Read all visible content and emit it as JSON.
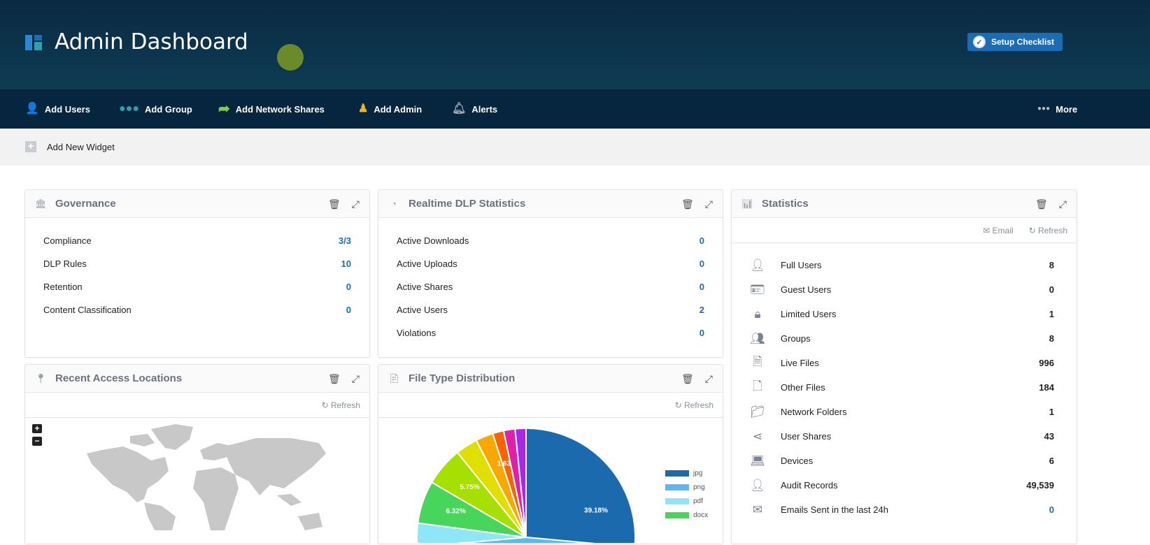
{
  "header": {
    "title": "Admin Dashboard",
    "setup_label": "Setup Checklist"
  },
  "nav": {
    "items": [
      {
        "label": "Add Users",
        "icon": "user-plus-icon",
        "color": "#2f86d4"
      },
      {
        "label": "Add Group",
        "icon": "group-icon",
        "color": "#2aa3ad"
      },
      {
        "label": "Add Network Shares",
        "icon": "share-arrow-icon",
        "color": "#7fcf3a"
      },
      {
        "label": "Add Admin",
        "icon": "admin-icon",
        "color": "#f0b323"
      },
      {
        "label": "Alerts",
        "icon": "bell-icon",
        "color": "#a0a8b8"
      }
    ],
    "more_label": "More"
  },
  "toolbar": {
    "add_widget": "Add New Widget"
  },
  "governance": {
    "title": "Governance",
    "rows": [
      {
        "label": "Compliance",
        "value": "3/3"
      },
      {
        "label": "DLP Rules",
        "value": "10"
      },
      {
        "label": "Retention",
        "value": "0"
      },
      {
        "label": "Content Classification",
        "value": "0"
      }
    ]
  },
  "dlp": {
    "title": "Realtime DLP Statistics",
    "rows": [
      {
        "label": "Active Downloads",
        "value": "0"
      },
      {
        "label": "Active Uploads",
        "value": "0"
      },
      {
        "label": "Active Shares",
        "value": "0"
      },
      {
        "label": "Active Users",
        "value": "2"
      },
      {
        "label": "Violations",
        "value": "0"
      }
    ]
  },
  "statistics": {
    "title": "Statistics",
    "email": "Email",
    "refresh": "Refresh",
    "rows": [
      {
        "label": "Full Users",
        "value": "8",
        "icon": "user-icon"
      },
      {
        "label": "Guest Users",
        "value": "0",
        "icon": "badge-icon"
      },
      {
        "label": "Limited Users",
        "value": "1",
        "icon": "user-lock-icon"
      },
      {
        "label": "Groups",
        "value": "8",
        "icon": "group-icon"
      },
      {
        "label": "Live Files",
        "value": "996",
        "icon": "file-text-icon"
      },
      {
        "label": "Other Files",
        "value": "184",
        "icon": "file-icon"
      },
      {
        "label": "Network Folders",
        "value": "1",
        "icon": "folder-icon"
      },
      {
        "label": "User Shares",
        "value": "43",
        "icon": "share-icon"
      },
      {
        "label": "Devices",
        "value": "6",
        "icon": "laptop-icon"
      },
      {
        "label": "Audit Records",
        "value": "49,539",
        "icon": "user-icon"
      },
      {
        "label": "Emails Sent in the last 24h",
        "value": "0",
        "icon": "envelope-icon",
        "highlight": true
      }
    ]
  },
  "locations": {
    "title": "Recent Access Locations",
    "refresh": "Refresh",
    "zoom_in": "+",
    "zoom_out": "−"
  },
  "filetypes": {
    "title": "File Type Distribution",
    "refresh": "Refresh"
  },
  "chart_data": {
    "type": "pie",
    "slices": [
      {
        "name": "jpg",
        "value": 39.18,
        "label": "39.18%",
        "color": "#1c6aae"
      },
      {
        "name": "png",
        "value": 22.0,
        "color": "#5bb8f5"
      },
      {
        "name": "pdf",
        "value": 15.92,
        "color": "#8ee6f7"
      },
      {
        "name": "docx",
        "value": 6.32,
        "label": "6.32%",
        "color": "#47d65b"
      },
      {
        "value": 5.75,
        "label": "5.75%",
        "color": "#a5e000"
      },
      {
        "value": 3.3,
        "color": "#dfe000"
      },
      {
        "value": 2.6,
        "color": "#f8a800"
      },
      {
        "value": 1.63,
        "label": "1.63%",
        "color": "#f86400"
      },
      {
        "value": 1.7,
        "color": "#e020a8"
      },
      {
        "value": 1.6,
        "color": "#a828e8"
      }
    ],
    "legend": "right"
  }
}
